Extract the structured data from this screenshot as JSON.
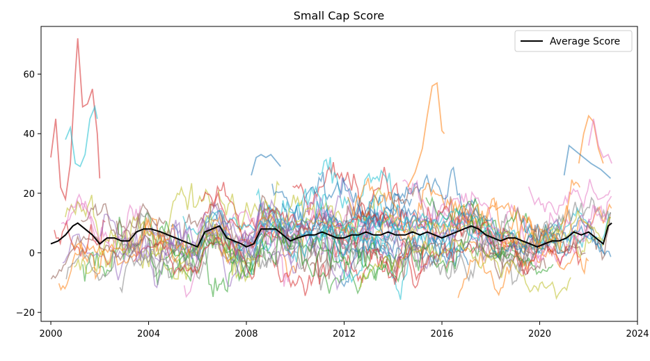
{
  "chart_data": {
    "type": "line",
    "title": "Small Cap Score",
    "xlabel": "",
    "ylabel": "",
    "xlim": [
      1999.6,
      2024.0
    ],
    "ylim": [
      -23,
      76
    ],
    "x_ticks": [
      2000,
      2004,
      2008,
      2012,
      2016,
      2020,
      2024
    ],
    "x_tick_labels": [
      "2000",
      "2004",
      "2008",
      "2012",
      "2016",
      "2020",
      "2024"
    ],
    "y_ticks": [
      -20,
      0,
      20,
      40,
      60
    ],
    "y_tick_labels": [
      "−20",
      "0",
      "20",
      "40",
      "60"
    ],
    "grid": false,
    "legend": {
      "position": "top-right",
      "entries": [
        "Average Score"
      ]
    },
    "individual_series_note": "many semi-transparent colored lines (individual small-cap score series) behind the average",
    "individual_colors": [
      "#1f77b4",
      "#ff7f0e",
      "#2ca02c",
      "#d62728",
      "#9467bd",
      "#8c564b",
      "#e377c2",
      "#7f7f7f",
      "#bcbd22",
      "#17becf"
    ],
    "highlight_series": [
      {
        "color": "#d62728",
        "x": [
          2000.0,
          2000.2,
          2000.4,
          2000.6,
          2000.8,
          2001.0,
          2001.1,
          2001.3,
          2001.5,
          2001.7,
          2001.9,
          2002.0
        ],
        "y": [
          32,
          45,
          22,
          18,
          30,
          60,
          72,
          49,
          50,
          55,
          40,
          25
        ]
      },
      {
        "color": "#17becf",
        "x": [
          2000.6,
          2000.8,
          2001.0,
          2001.2,
          2001.4,
          2001.6,
          2001.8,
          2001.9
        ],
        "y": [
          38,
          42,
          30,
          29,
          33,
          45,
          49,
          45
        ]
      },
      {
        "color": "#ff7f0e",
        "x": [
          2014.6,
          2014.9,
          2015.2,
          2015.4,
          2015.6,
          2015.8,
          2016.0,
          2016.1
        ],
        "y": [
          22,
          27,
          35,
          46,
          56,
          57,
          41,
          40
        ]
      },
      {
        "color": "#1f77b4",
        "x": [
          2008.2,
          2008.4,
          2008.6,
          2008.8,
          2009.0,
          2009.2,
          2009.4
        ],
        "y": [
          26,
          32,
          33,
          32,
          33,
          31,
          29
        ]
      },
      {
        "color": "#ff7f0e",
        "x": [
          2021.6,
          2021.8,
          2022.0,
          2022.2,
          2022.4,
          2022.6
        ],
        "y": [
          30,
          40,
          46,
          44,
          35,
          30
        ]
      },
      {
        "color": "#1f77b4",
        "x": [
          2021.0,
          2021.2,
          2021.5,
          2021.8,
          2022.1,
          2022.5,
          2022.9
        ],
        "y": [
          26,
          36,
          34,
          32,
          30,
          28,
          25
        ]
      },
      {
        "color": "#e377c2",
        "x": [
          2022.0,
          2022.2,
          2022.4,
          2022.6,
          2022.8,
          2022.95
        ],
        "y": [
          36,
          45,
          36,
          32,
          33,
          30
        ]
      }
    ],
    "series": [
      {
        "name": "Average Score",
        "color": "#000000",
        "x": [
          2000.0,
          2000.3,
          2000.6,
          2000.9,
          2001.1,
          2001.4,
          2001.7,
          2002.0,
          2002.3,
          2002.6,
          2002.9,
          2003.2,
          2003.5,
          2003.8,
          2004.1,
          2004.5,
          2004.8,
          2005.1,
          2005.4,
          2005.7,
          2006.0,
          2006.3,
          2006.6,
          2006.9,
          2007.2,
          2007.5,
          2007.8,
          2008.0,
          2008.3,
          2008.6,
          2008.9,
          2009.2,
          2009.5,
          2009.8,
          2010.1,
          2010.5,
          2010.8,
          2011.1,
          2011.4,
          2011.7,
          2012.0,
          2012.3,
          2012.6,
          2012.9,
          2013.2,
          2013.5,
          2013.8,
          2014.1,
          2014.5,
          2014.8,
          2015.1,
          2015.4,
          2015.7,
          2016.0,
          2016.3,
          2016.6,
          2016.9,
          2017.2,
          2017.5,
          2017.8,
          2018.1,
          2018.4,
          2018.7,
          2019.0,
          2019.3,
          2019.6,
          2019.9,
          2020.2,
          2020.5,
          2020.8,
          2021.1,
          2021.4,
          2021.7,
          2022.0,
          2022.3,
          2022.6,
          2022.8,
          2022.95
        ],
        "y": [
          3,
          4,
          6,
          9,
          10,
          8,
          6,
          3,
          5,
          5,
          4,
          4,
          7,
          8,
          8,
          7,
          6,
          5,
          4,
          3,
          2,
          7,
          8,
          9,
          5,
          4,
          3,
          2,
          3,
          8,
          8,
          8,
          6,
          4,
          5,
          6,
          6,
          7,
          6,
          5,
          5,
          6,
          6,
          7,
          6,
          6,
          7,
          6,
          6,
          7,
          6,
          7,
          6,
          5,
          6,
          7,
          8,
          9,
          8,
          6,
          5,
          4,
          5,
          5,
          4,
          3,
          2,
          3,
          4,
          4,
          5,
          7,
          6,
          7,
          5,
          3,
          9,
          10
        ]
      }
    ]
  }
}
